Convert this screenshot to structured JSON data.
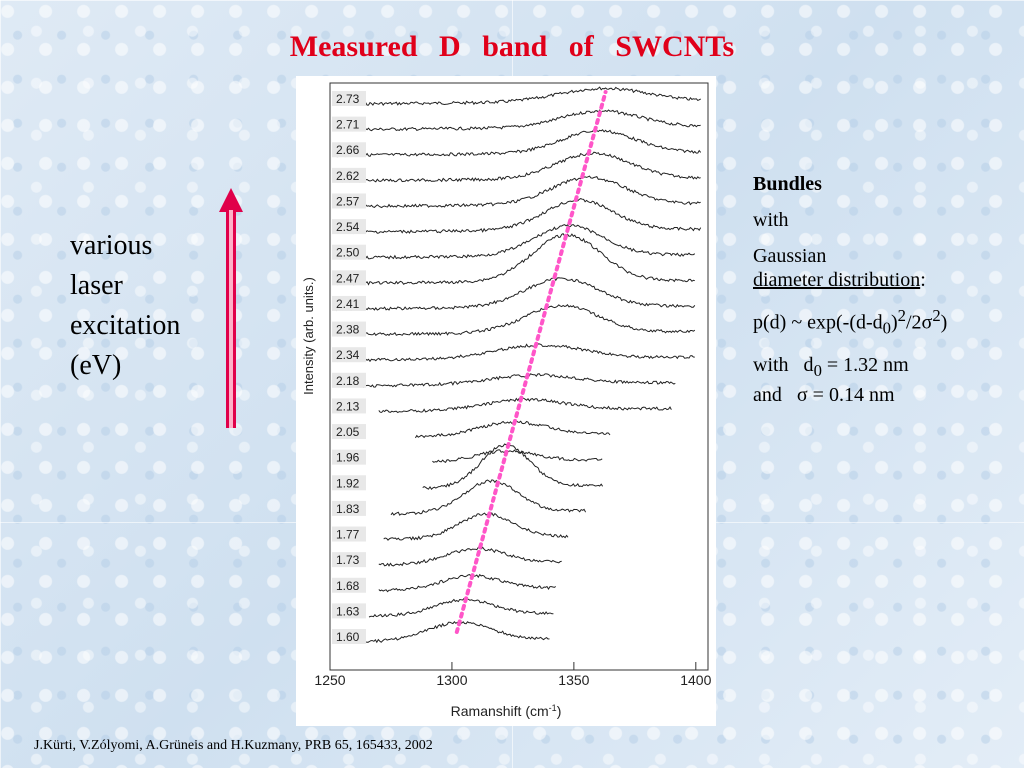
{
  "slide": {
    "title": "Measured   D band   of   SWCNTs",
    "left_label_lines": [
      "various",
      "laser",
      "excitation",
      "(eV)"
    ],
    "citation": "J.Kürti, V.Zólyomi, A.Grüneis and H.Kuzmany, PRB 65, 165433, 2002"
  },
  "info": {
    "heading": "Bundles",
    "with1": "with",
    "gaussian": "Gaussian",
    "diam_dist": "diameter distribution",
    "colon": ":",
    "formula": {
      "p1": "p(d) ~ exp(-(d-d",
      "sub0": "0",
      "p2": ")",
      "sup2a": "2",
      "p3": "/2σ",
      "sup2b": "2",
      "p4": ")"
    },
    "d0_prefix": "with   d",
    "d0_sub": "0",
    "d0_value": " = 1.32 nm",
    "sigma_line": "and   σ = 0.14 nm"
  },
  "colors": {
    "title": "#e0001a",
    "arrow": "#e0004a",
    "trend_line": "#ff55c8",
    "trace": "#222222"
  },
  "chart_data": {
    "type": "line",
    "title": "",
    "xlabel": "Ramanshift (cm",
    "xlabel_sup": "-1",
    "xlabel_end": ")",
    "ylabel": "Intensity (arb. units.)",
    "xlim": [
      1250,
      1405
    ],
    "xticks": [
      1250,
      1300,
      1350,
      1400
    ],
    "grid": false,
    "stacked_offsets": true,
    "trend_line": {
      "style": "dotted",
      "x_start": 1302,
      "x_end": 1363
    },
    "series": [
      {
        "name": "2.73",
        "x_range": [
          1252,
          1402
        ],
        "peak": 1362,
        "height": 0.45,
        "width": 18
      },
      {
        "name": "2.71",
        "x_range": [
          1252,
          1402
        ],
        "peak": 1361,
        "height": 0.55,
        "width": 16
      },
      {
        "name": "2.66",
        "x_range": [
          1252,
          1402
        ],
        "peak": 1360,
        "height": 0.75,
        "width": 15
      },
      {
        "name": "2.62",
        "x_range": [
          1252,
          1402
        ],
        "peak": 1358,
        "height": 0.85,
        "width": 15
      },
      {
        "name": "2.57",
        "x_range": [
          1252,
          1402
        ],
        "peak": 1356,
        "height": 0.9,
        "width": 15
      },
      {
        "name": "2.54",
        "x_range": [
          1252,
          1402
        ],
        "peak": 1352,
        "height": 1.0,
        "width": 14
      },
      {
        "name": "2.50",
        "x_range": [
          1252,
          1400
        ],
        "peak": 1348,
        "height": 1.0,
        "width": 14
      },
      {
        "name": "2.47",
        "x_range": [
          1252,
          1400
        ],
        "peak": 1347,
        "height": 1.55,
        "width": 14
      },
      {
        "name": "2.41",
        "x_range": [
          1252,
          1400
        ],
        "peak": 1345,
        "height": 0.95,
        "width": 15
      },
      {
        "name": "2.38",
        "x_range": [
          1252,
          1400
        ],
        "peak": 1345,
        "height": 0.9,
        "width": 15
      },
      {
        "name": "2.34",
        "x_range": [
          1252,
          1400
        ],
        "peak": 1336,
        "height": 0.45,
        "width": 18
      },
      {
        "name": "2.18",
        "x_range": [
          1262,
          1392
        ],
        "peak": 1334,
        "height": 0.3,
        "width": 18
      },
      {
        "name": "2.13",
        "x_range": [
          1270,
          1390
        ],
        "peak": 1330,
        "height": 0.35,
        "width": 16
      },
      {
        "name": "2.05",
        "x_range": [
          1285,
          1365
        ],
        "peak": 1325,
        "height": 0.45,
        "width": 14
      },
      {
        "name": "1.96",
        "x_range": [
          1292,
          1362
        ],
        "peak": 1322,
        "height": 0.35,
        "width": 12
      },
      {
        "name": "1.92",
        "x_range": [
          1288,
          1362
        ],
        "peak": 1322,
        "height": 1.4,
        "width": 10
      },
      {
        "name": "1.83",
        "x_range": [
          1275,
          1355
        ],
        "peak": 1316,
        "height": 1.05,
        "width": 11
      },
      {
        "name": "1.77",
        "x_range": [
          1272,
          1348
        ],
        "peak": 1314,
        "height": 0.8,
        "width": 11
      },
      {
        "name": "1.73",
        "x_range": [
          1270,
          1345
        ],
        "peak": 1310,
        "height": 0.5,
        "width": 12
      },
      {
        "name": "1.68",
        "x_range": [
          1270,
          1343
        ],
        "peak": 1308,
        "height": 0.45,
        "width": 12
      },
      {
        "name": "1.63",
        "x_range": [
          1266,
          1342
        ],
        "peak": 1305,
        "height": 0.5,
        "width": 12
      },
      {
        "name": "1.60",
        "x_range": [
          1262,
          1340
        ],
        "peak": 1303,
        "height": 0.6,
        "width": 13
      }
    ]
  }
}
